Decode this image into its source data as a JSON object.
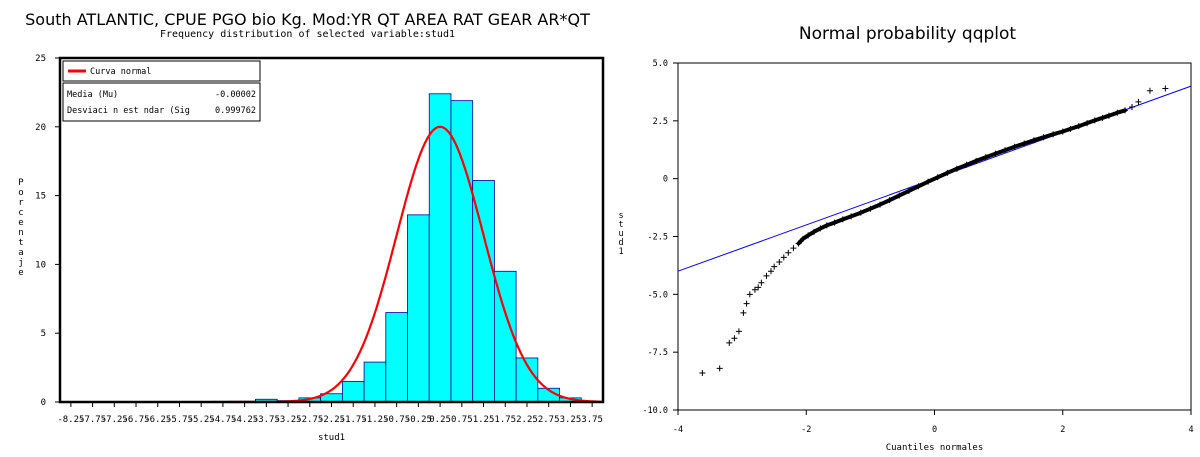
{
  "left": {
    "title": "South ATLANTIC, CPUE PGO bio Kg. Mod:YR QT AREA RAT GEAR AR*QT",
    "subtitle": "Frequency distribution of selected variable:stud1",
    "legend": {
      "curve_label": "Curva normal",
      "mean_label": "Media (Mu)",
      "mean_value": "-0.00002",
      "sd_label": "Desviaci n est ndar (Sig",
      "sd_value": "0.999762"
    }
  },
  "right": {
    "title": "Normal probability qqplot"
  },
  "colors": {
    "bar_fill": "#00ffff",
    "bar_stroke": "#0000a0",
    "normal_curve": "#ff0000",
    "ref_line": "#0000ff",
    "points": "#000000"
  },
  "chart_data": [
    {
      "type": "bar",
      "title": "South ATLANTIC, CPUE PGO bio Kg. Mod:YR QT AREA RAT GEAR AR*QT",
      "subtitle": "Frequency distribution of selected variable:stud1",
      "xlabel": "stud1",
      "ylabel": "Porcentaje",
      "xlim": [
        -8.5,
        4.0
      ],
      "ylim": [
        0,
        25
      ],
      "bin_width": 0.5,
      "x_ticks": [
        -8.25,
        -7.75,
        -7.25,
        -6.75,
        -6.25,
        -5.75,
        -5.25,
        -4.75,
        -4.25,
        -3.75,
        -3.25,
        -2.75,
        -2.25,
        -1.75,
        -1.25,
        -0.75,
        -0.25,
        0.25,
        0.75,
        1.25,
        1.75,
        2.25,
        2.75,
        3.25,
        3.75
      ],
      "x_tick_labels": [
        "-8.25",
        "-7.75",
        "-7.25",
        "-6.75",
        "-6.25",
        "-5.75",
        "-5.25",
        "-4.75",
        "-4.25",
        "-3.75",
        "-3.25",
        "-2.75",
        "-2.25",
        "-1.75",
        "-1.25",
        "-0.75",
        "-0.25",
        "0.25",
        "0.75",
        "1.25",
        "1.75",
        "2.25",
        "2.75",
        "3.25",
        "3.75"
      ],
      "y_ticks": [
        0,
        5,
        10,
        15,
        20,
        25
      ],
      "y_tick_labels": [
        "0",
        "5",
        "10",
        "15",
        "20",
        "25"
      ],
      "bins": [
        {
          "x": -4.75,
          "value": 0.05
        },
        {
          "x": -4.25,
          "value": 0.05
        },
        {
          "x": -3.75,
          "value": 0.2
        },
        {
          "x": -3.25,
          "value": 0.1
        },
        {
          "x": -2.75,
          "value": 0.3
        },
        {
          "x": -2.25,
          "value": 0.6
        },
        {
          "x": -1.75,
          "value": 1.5
        },
        {
          "x": -1.25,
          "value": 2.9
        },
        {
          "x": -0.75,
          "value": 6.5
        },
        {
          "x": -0.25,
          "value": 13.6
        },
        {
          "x": 0.25,
          "value": 22.4
        },
        {
          "x": 0.75,
          "value": 21.9
        },
        {
          "x": 1.25,
          "value": 16.1
        },
        {
          "x": 1.75,
          "value": 9.5
        },
        {
          "x": 2.25,
          "value": 3.2
        },
        {
          "x": 2.75,
          "value": 1.0
        },
        {
          "x": 3.25,
          "value": 0.3
        }
      ],
      "normal_curve": {
        "name": "Curva normal",
        "mean": -2e-05,
        "sd": 0.999762,
        "peak_percent": 20
      },
      "grid": false,
      "legend_position": "top-left"
    },
    {
      "type": "scatter",
      "title": "Normal probability qqplot",
      "xlabel": "Cuantiles normales",
      "ylabel": "stud1",
      "xlim": [
        -4,
        4
      ],
      "ylim": [
        -10,
        5
      ],
      "x_ticks": [
        -4,
        -2,
        0,
        2,
        4
      ],
      "x_tick_labels": [
        "-4",
        "-2",
        "0",
        "2",
        "4"
      ],
      "y_ticks": [
        -10,
        -7.5,
        -5,
        -2.5,
        0,
        2.5,
        5
      ],
      "y_tick_labels": [
        "-10.0",
        "-7.5",
        "-5.0",
        "-2.5",
        "0",
        "2.5",
        "5.0"
      ],
      "reference_line": {
        "x": [
          -4,
          4
        ],
        "y": [
          -4.0,
          4.0
        ]
      },
      "points": [
        [
          -3.62,
          -8.4
        ],
        [
          -3.35,
          -8.2
        ],
        [
          -3.2,
          -7.1
        ],
        [
          -3.12,
          -6.9
        ],
        [
          -3.05,
          -6.6
        ],
        [
          -2.98,
          -5.8
        ],
        [
          -2.93,
          -5.4
        ],
        [
          -2.88,
          -5.0
        ],
        [
          -2.8,
          -4.8
        ],
        [
          -2.75,
          -4.7
        ],
        [
          -2.7,
          -4.5
        ],
        [
          -2.62,
          -4.2
        ],
        [
          -2.55,
          -4.0
        ],
        [
          -2.5,
          -3.8
        ],
        [
          -2.42,
          -3.6
        ],
        [
          -2.35,
          -3.4
        ],
        [
          -2.28,
          -3.2
        ],
        [
          -2.2,
          -3.0
        ],
        [
          -2.12,
          -2.8
        ],
        [
          -2.05,
          -2.6
        ],
        [
          -1.97,
          -2.45
        ],
        [
          -1.88,
          -2.3
        ],
        [
          -1.78,
          -2.15
        ],
        [
          -1.68,
          -2.02
        ],
        [
          -1.56,
          -1.9
        ],
        [
          -1.43,
          -1.76
        ],
        [
          -1.3,
          -1.63
        ],
        [
          -1.15,
          -1.47
        ],
        [
          -1.0,
          -1.3
        ],
        [
          -0.85,
          -1.12
        ],
        [
          -0.7,
          -0.93
        ],
        [
          -0.55,
          -0.73
        ],
        [
          -0.4,
          -0.53
        ],
        [
          -0.25,
          -0.33
        ],
        [
          -0.1,
          -0.13
        ],
        [
          0.05,
          0.06
        ],
        [
          0.2,
          0.25
        ],
        [
          0.35,
          0.43
        ],
        [
          0.5,
          0.6
        ],
        [
          0.65,
          0.77
        ],
        [
          0.8,
          0.93
        ],
        [
          0.95,
          1.08
        ],
        [
          1.1,
          1.23
        ],
        [
          1.25,
          1.38
        ],
        [
          1.4,
          1.52
        ],
        [
          1.55,
          1.66
        ],
        [
          1.7,
          1.79
        ],
        [
          1.85,
          1.92
        ],
        [
          2.0,
          2.04
        ],
        [
          2.12,
          2.15
        ],
        [
          2.25,
          2.27
        ],
        [
          2.38,
          2.4
        ],
        [
          2.5,
          2.52
        ],
        [
          2.62,
          2.63
        ],
        [
          2.72,
          2.72
        ],
        [
          2.85,
          2.85
        ],
        [
          2.97,
          2.95
        ],
        [
          3.08,
          3.1
        ],
        [
          3.18,
          3.32
        ],
        [
          3.36,
          3.8
        ],
        [
          3.6,
          3.9
        ]
      ]
    }
  ]
}
